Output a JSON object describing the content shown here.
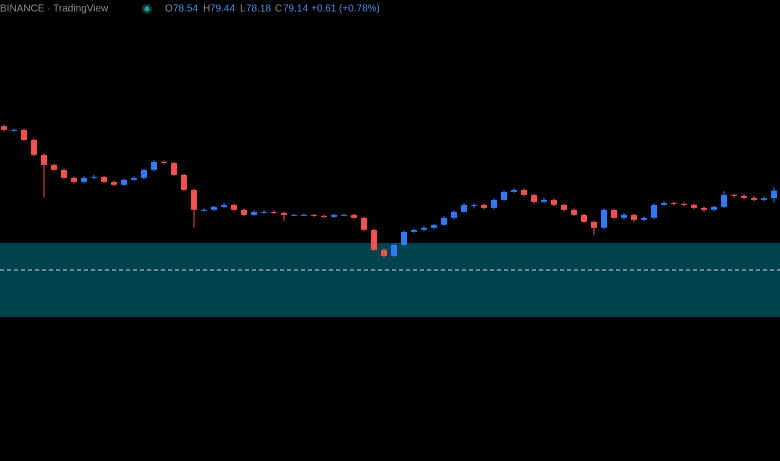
{
  "header": {
    "source": "BINANCE · TradingView",
    "o": "O",
    "h": "H",
    "l": "L",
    "c": "C",
    "change": "+0.61",
    "change_pct": "(+0.78%)"
  },
  "chart_data": {
    "type": "candlestick",
    "open": [
      84.3,
      84.0,
      84.0,
      83.2,
      82.0,
      81.2,
      80.8,
      80.16,
      79.84,
      80.16,
      80.24,
      79.84,
      79.6,
      80.0,
      80.16,
      80.8,
      81.44,
      81.36,
      80.4,
      79.2,
      77.6,
      77.6,
      77.84,
      78.0,
      77.6,
      77.2,
      77.44,
      77.44,
      77.36,
      77.2,
      77.2,
      77.2,
      77.12,
      77.04,
      77.2,
      77.2,
      76.96,
      76.0,
      74.4,
      73.92,
      74.8,
      75.84,
      76.0,
      76.16,
      76.4,
      76.96,
      77.44,
      78.0,
      78.0,
      77.76,
      78.4,
      79.04,
      79.2,
      78.8,
      78.24,
      78.4,
      78.0,
      77.6,
      77.2,
      76.64,
      76.16,
      77.6,
      76.96,
      77.2,
      76.8,
      76.96,
      78.0,
      78.16,
      78.08,
      78.0,
      77.76,
      77.6,
      77.84,
      78.8,
      78.72,
      78.56,
      78.4,
      78.54
    ],
    "high": [
      84.4,
      84.1,
      84.1,
      83.3,
      82.1,
      81.3,
      80.9,
      80.25,
      80.3,
      80.4,
      80.35,
      79.95,
      80.1,
      80.3,
      80.9,
      81.6,
      81.55,
      81.45,
      80.5,
      79.3,
      77.75,
      77.95,
      78.15,
      78.1,
      77.7,
      77.55,
      77.6,
      77.55,
      77.45,
      77.3,
      77.3,
      77.3,
      77.2,
      77.3,
      77.3,
      77.3,
      77.05,
      76.1,
      74.5,
      74.9,
      75.95,
      76.1,
      76.3,
      76.5,
      77.1,
      77.55,
      78.15,
      78.1,
      78.1,
      78.5,
      79.15,
      79.35,
      79.3,
      78.9,
      78.55,
      78.5,
      78.1,
      77.7,
      77.3,
      76.75,
      77.7,
      77.7,
      77.35,
      77.3,
      77.1,
      78.15,
      78.3,
      78.25,
      78.2,
      78.1,
      77.85,
      77.95,
      79.1,
      78.9,
      78.85,
      78.7,
      78.65,
      79.44
    ],
    "low": [
      83.9,
      83.85,
      83.1,
      81.9,
      78.6,
      80.7,
      80.05,
      79.7,
      79.75,
      80.05,
      79.75,
      79.5,
      79.5,
      79.9,
      80.05,
      80.7,
      81.25,
      80.3,
      79.1,
      76.2,
      77.45,
      77.5,
      77.75,
      77.5,
      77.1,
      77.1,
      77.3,
      77.25,
      76.7,
      77.1,
      77.1,
      77.05,
      76.95,
      76.95,
      77.1,
      76.85,
      75.9,
      74.3,
      73.7,
      73.8,
      74.7,
      75.75,
      75.9,
      76.05,
      76.3,
      76.85,
      77.35,
      77.7,
      77.65,
      77.65,
      78.3,
      78.95,
      78.7,
      78.1,
      78.15,
      77.9,
      77.5,
      77.1,
      76.55,
      75.6,
      76.05,
      76.85,
      76.85,
      76.65,
      76.7,
      76.85,
      77.9,
      77.95,
      77.9,
      77.65,
      77.45,
      77.5,
      77.75,
      78.6,
      78.45,
      78.3,
      78.3,
      78.18
    ],
    "close": [
      84.0,
      84.0,
      83.2,
      82.0,
      81.2,
      80.8,
      80.16,
      79.84,
      80.16,
      80.24,
      79.84,
      79.6,
      80.0,
      80.16,
      80.8,
      81.44,
      81.36,
      80.4,
      79.2,
      77.6,
      77.6,
      77.84,
      78.0,
      77.6,
      77.2,
      77.44,
      77.44,
      77.36,
      77.2,
      77.2,
      77.2,
      77.12,
      77.04,
      77.2,
      77.2,
      76.96,
      76.0,
      74.4,
      73.92,
      74.8,
      75.84,
      76.0,
      76.16,
      76.4,
      76.96,
      77.44,
      78.0,
      78.0,
      77.76,
      78.4,
      79.04,
      79.2,
      78.8,
      78.24,
      78.4,
      78.0,
      77.6,
      77.2,
      76.64,
      76.16,
      77.6,
      76.96,
      77.2,
      76.8,
      76.96,
      78.0,
      78.16,
      78.08,
      78.0,
      77.76,
      77.6,
      77.84,
      78.8,
      78.72,
      78.56,
      78.4,
      78.54,
      79.14
    ],
    "ylim": [
      57.5,
      94.4
    ],
    "up_color": "#3179f5",
    "down_color": "#f0534f"
  }
}
